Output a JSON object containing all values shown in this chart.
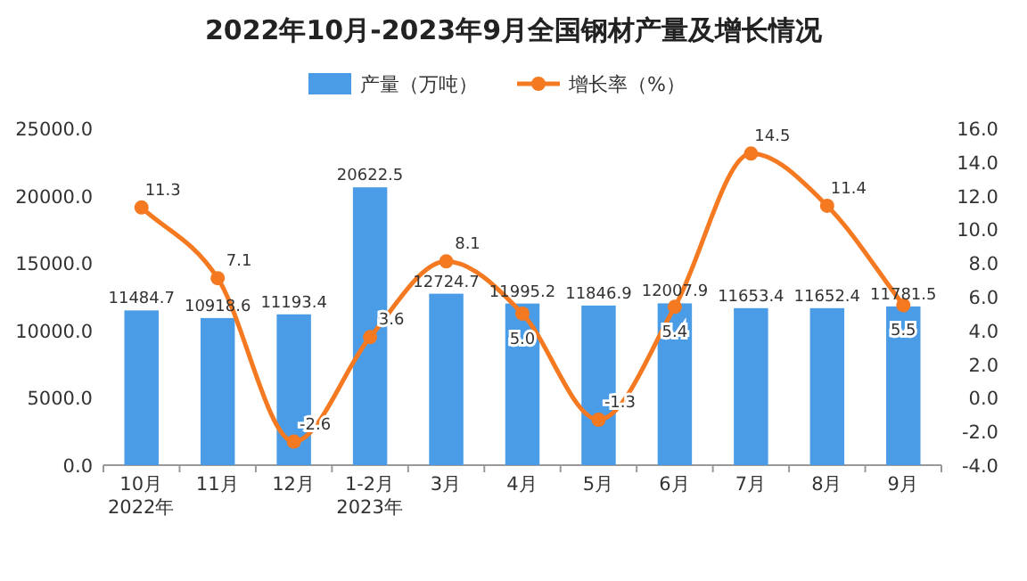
{
  "chart_data": {
    "type": "bar",
    "title": "2022年10月-2023年9月全国钢材产量及增长情况",
    "categories": [
      "10月\n2022年",
      "11月",
      "12月",
      "1-2月\n2023年",
      "3月",
      "4月",
      "5月",
      "6月",
      "7月",
      "8月",
      "9月"
    ],
    "series": [
      {
        "name": "产量（万吨）",
        "color": "#4a9ce6",
        "values": [
          11484.7,
          10918.6,
          11193.4,
          20622.5,
          12724.7,
          11995.2,
          11846.9,
          12007.9,
          11653.4,
          11652.4,
          11781.5
        ],
        "value_labels": [
          "11484.7",
          "10918.6",
          "11193.4",
          "20622.5",
          "12724.7",
          "11995.2",
          "11846.9",
          "12007.9",
          "11653.4",
          "11652.4",
          "11781.5"
        ]
      },
      {
        "name": "增长率（%）",
        "type": "line",
        "axis": "y2",
        "color": "#f47920",
        "marker": "circle",
        "values": [
          11.3,
          7.1,
          -2.6,
          3.6,
          8.1,
          5.0,
          -1.3,
          5.4,
          14.5,
          11.4,
          5.5
        ],
        "value_labels": [
          "11.3",
          "7.1",
          "-2.6",
          "3.6",
          "8.1",
          "5.0",
          "-1.3",
          "5.4",
          "14.5",
          "11.4",
          "5.5"
        ]
      }
    ],
    "ylim": [
      0,
      25000
    ],
    "yticks": [
      {
        "value": 0,
        "label": "0.0"
      },
      {
        "value": 5000,
        "label": "5000.0"
      },
      {
        "value": 10000,
        "label": "10000.0"
      },
      {
        "value": 15000,
        "label": "15000.0"
      },
      {
        "value": 20000,
        "label": "20000.0"
      },
      {
        "value": 25000,
        "label": "25000.0"
      }
    ],
    "y2lim": [
      -4,
      16
    ],
    "y2ticks": [
      {
        "value": -4,
        "label": "-4.0"
      },
      {
        "value": -2,
        "label": "-2.0"
      },
      {
        "value": 0,
        "label": "0.0"
      },
      {
        "value": 2,
        "label": "2.0"
      },
      {
        "value": 4,
        "label": "4.0"
      },
      {
        "value": 6,
        "label": "6.0"
      },
      {
        "value": 8,
        "label": "8.0"
      },
      {
        "value": 10,
        "label": "10.0"
      },
      {
        "value": 12,
        "label": "12.0"
      },
      {
        "value": 14,
        "label": "14.0"
      },
      {
        "value": 16,
        "label": "16.0"
      }
    ],
    "legend": "top"
  }
}
